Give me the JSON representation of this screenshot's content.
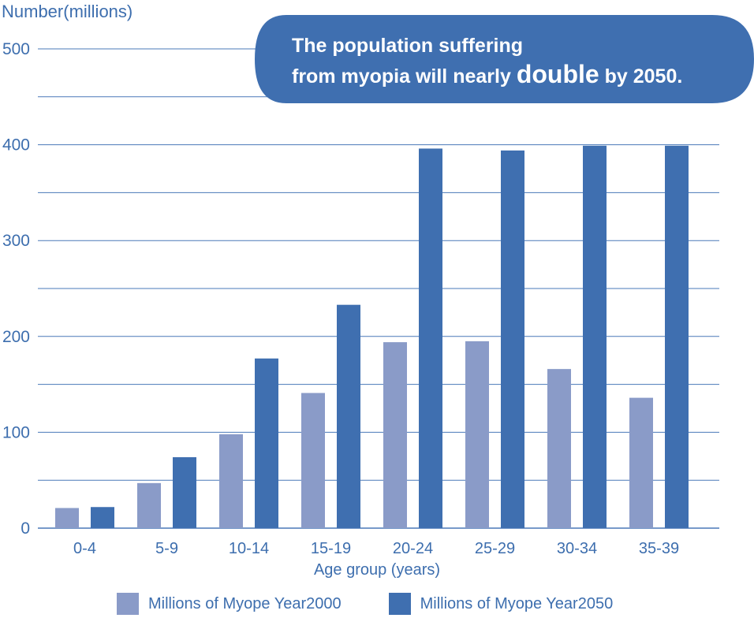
{
  "chart_data": {
    "type": "bar",
    "ylabel": "Number(millions)",
    "xlabel": "Age group (years)",
    "ylim": [
      0,
      500
    ],
    "y_major_ticks": [
      0,
      100,
      200,
      300,
      400,
      500
    ],
    "y_minor_step": 50,
    "grid": true,
    "legend_position": "bottom",
    "categories": [
      "0-4",
      "5-9",
      "10-14",
      "15-19",
      "20-24",
      "25-29",
      "30-34",
      "35-39"
    ],
    "series": [
      {
        "name": "Millions of Myope Year2000",
        "color": "#8a9bc8",
        "values": [
          21,
          47,
          98,
          141,
          194,
          195,
          166,
          136
        ]
      },
      {
        "name": "Millions of Myope Year2050",
        "color": "#3f6fb0",
        "values": [
          22,
          74,
          177,
          233,
          396,
          394,
          399,
          399
        ]
      }
    ],
    "annotation": {
      "line1": "The population suffering",
      "line2_pre": "from myopia will nearly ",
      "line2_em": "double",
      "line2_post": " by 2050."
    }
  }
}
